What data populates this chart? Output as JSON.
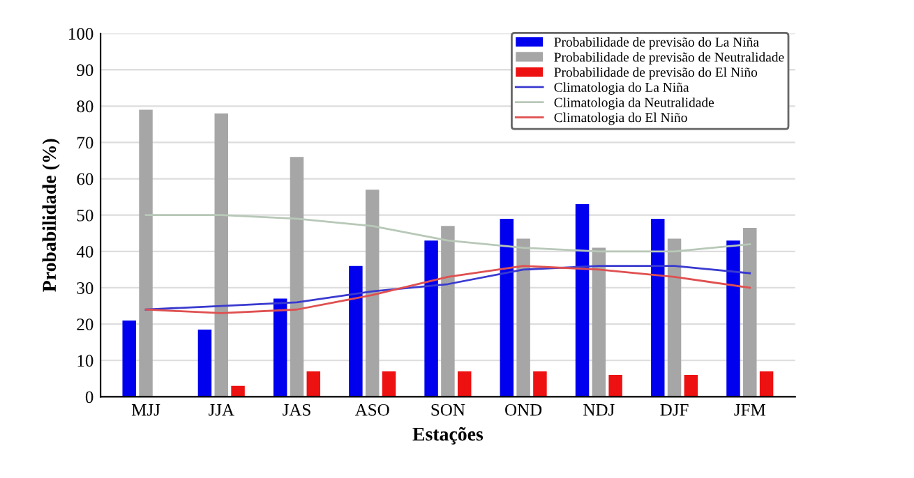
{
  "chart_data": {
    "type": "bar",
    "xlabel": "Estações",
    "ylabel": "Probabilidade (%)",
    "categories": [
      "MJJ",
      "JJA",
      "JAS",
      "ASO",
      "SON",
      "OND",
      "NDJ",
      "DJF",
      "JFM"
    ],
    "ylim": [
      0,
      100
    ],
    "yticks": [
      0,
      10,
      20,
      30,
      40,
      50,
      60,
      70,
      80,
      90,
      100
    ],
    "grid": "y",
    "legend": "top right",
    "series": [
      {
        "name": "Probabilidade de previsão do La Niña",
        "color": "#0000ee",
        "values": [
          21,
          18.5,
          27,
          36,
          43,
          49,
          53,
          49,
          43
        ]
      },
      {
        "name": "Probabilidade de previsão de Neutralidade",
        "color": "#a6a6a6",
        "values": [
          79,
          78,
          66,
          57,
          47,
          43.5,
          41,
          43.5,
          46.5
        ]
      },
      {
        "name": "Probabilidade de previsão do El Niño",
        "color": "#ee1111",
        "values": [
          0,
          3,
          7,
          7,
          7,
          7,
          6,
          6,
          7
        ]
      },
      {
        "name": "Climatologia do La Niña",
        "type": "line",
        "color": "#3a3ad0",
        "values": [
          24,
          25,
          26,
          29,
          31,
          35,
          36,
          36,
          34
        ]
      },
      {
        "name": "Climatologia da Neutralidade",
        "type": "line",
        "color": "#b8c8b8",
        "values": [
          50,
          50,
          49,
          47,
          43,
          41,
          40,
          40,
          42
        ]
      },
      {
        "name": "Climatologia do El Niño",
        "type": "line",
        "color": "#e05050",
        "values": [
          24,
          23,
          24,
          28,
          33,
          36,
          35,
          33,
          30
        ]
      }
    ]
  }
}
